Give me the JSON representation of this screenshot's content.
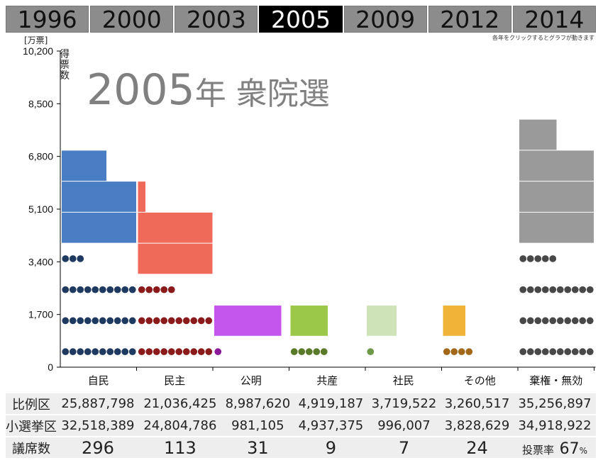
{
  "tabs": [
    "1996",
    "2000",
    "2003",
    "2005",
    "2009",
    "2012",
    "2014"
  ],
  "active_tab": "2005",
  "hint": "各年をクリックするとグラフが動きます",
  "title": {
    "year": "2005",
    "suffix": "年 衆院選"
  },
  "chart_data": {
    "type": "bar",
    "y_unit": "[万票]",
    "ylabel": "得票数",
    "ylim": [
      0,
      10200
    ],
    "yticks": [
      "0",
      "1,700",
      "3,400",
      "5,100",
      "6,800",
      "8,500",
      "10,200"
    ],
    "ytick_values": [
      0,
      1700,
      3400,
      5100,
      6800,
      8500,
      10200
    ],
    "categories": [
      "自民",
      "民主",
      "公明",
      "共産",
      "社民",
      "その他",
      "棄権・無効"
    ],
    "series": [
      {
        "name": "小選挙区",
        "values": [
          3251.8389,
          2480.4786,
          98.1105,
          493.7375,
          99.6007,
          382.8629,
          3491.8922
        ]
      },
      {
        "name": "比例区",
        "values": [
          2588.7798,
          2103.6425,
          898.762,
          491.9187,
          371.9522,
          326.0517,
          3525.6897
        ]
      }
    ],
    "colors": {
      "dark": [
        "#1f3a60",
        "#8b1a1a",
        "#8a1a9a",
        "#5a7a2a",
        "#6e9a48",
        "#a06818",
        "#484848"
      ],
      "light": [
        "#4a7ec4",
        "#f06a5a",
        "#c456ee",
        "#9cc84a",
        "#cfe3b8",
        "#f0b438",
        "#9a9a9a"
      ]
    }
  },
  "table": {
    "rows": [
      {
        "label": "比例区",
        "values": [
          "25,887,798",
          "21,036,425",
          "8,987,620",
          "4,919,187",
          "3,719,522",
          "3,260,517",
          "35,256,897"
        ]
      },
      {
        "label": "小選挙区",
        "values": [
          "32,518,389",
          "24,804,786",
          "981,105",
          "4,937,375",
          "996,007",
          "3,828,629",
          "34,918,922"
        ]
      },
      {
        "label": "議席数",
        "values": [
          "296",
          "113",
          "31",
          "9",
          "7",
          "24"
        ]
      }
    ],
    "turnout_label": "投票率",
    "turnout_value": "67",
    "turnout_unit": "%"
  }
}
